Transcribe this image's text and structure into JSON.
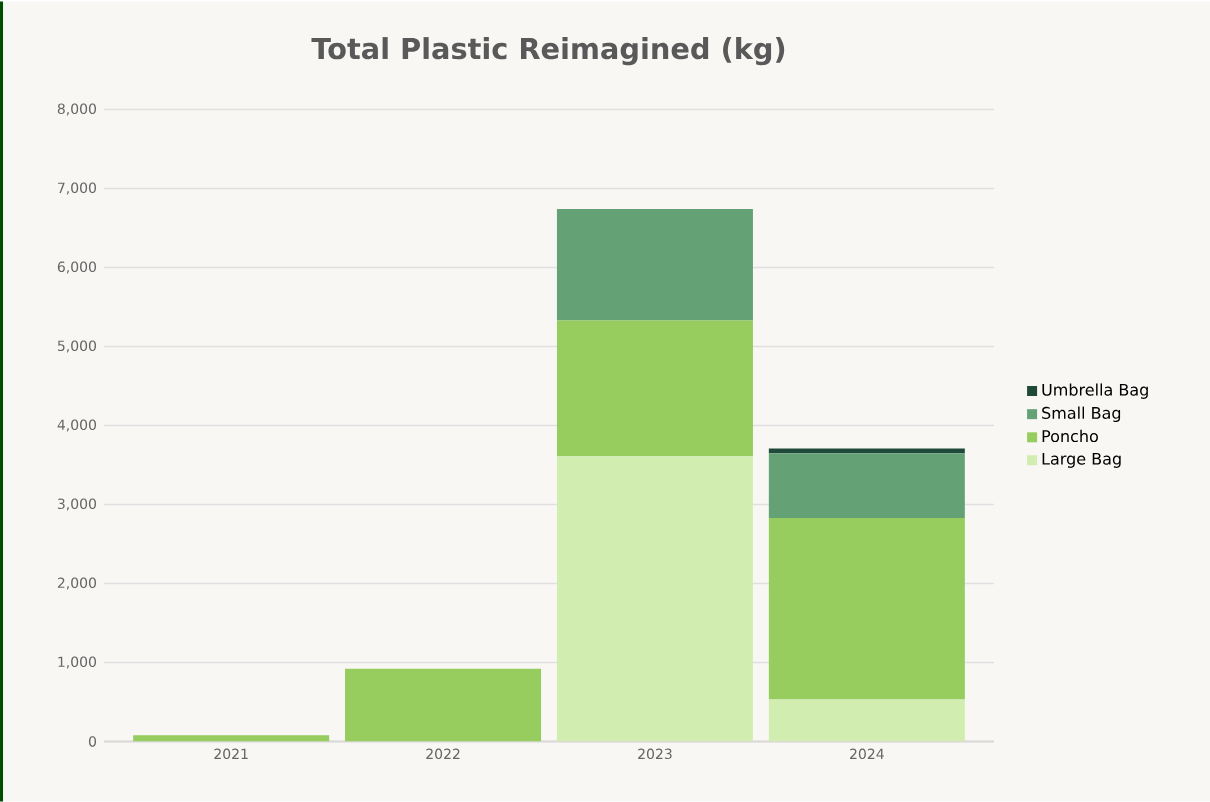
{
  "chart_data": {
    "type": "bar",
    "title": "Total Plastic Reimagined (kg)",
    "stacked": true,
    "categories": [
      "2021",
      "2022",
      "2023",
      "2024"
    ],
    "series": [
      {
        "name": "Large Bag",
        "color": "#d2edb0",
        "values": [
          0,
          0,
          3610,
          530
        ]
      },
      {
        "name": "Poncho",
        "color": "#96cd5e",
        "values": [
          80,
          920,
          1720,
          2300
        ]
      },
      {
        "name": "Small Bag",
        "color": "#64a275",
        "values": [
          0,
          0,
          1410,
          820
        ]
      },
      {
        "name": "Umbrella Bag",
        "color": "#1f4a3a",
        "values": [
          0,
          0,
          0,
          60
        ]
      }
    ],
    "ylim": [
      0,
      8000
    ],
    "yticks": [
      {
        "value": 0,
        "label": "0"
      },
      {
        "value": 1000,
        "label": "1,000"
      },
      {
        "value": 2000,
        "label": "2,000"
      },
      {
        "value": 3000,
        "label": "3,000"
      },
      {
        "value": 4000,
        "label": "4,000"
      },
      {
        "value": 5000,
        "label": "5,000"
      },
      {
        "value": 6000,
        "label": "6,000"
      },
      {
        "value": 7000,
        "label": "7,000"
      },
      {
        "value": 8000,
        "label": "8,000"
      }
    ],
    "grid": "y",
    "legend": "right"
  }
}
